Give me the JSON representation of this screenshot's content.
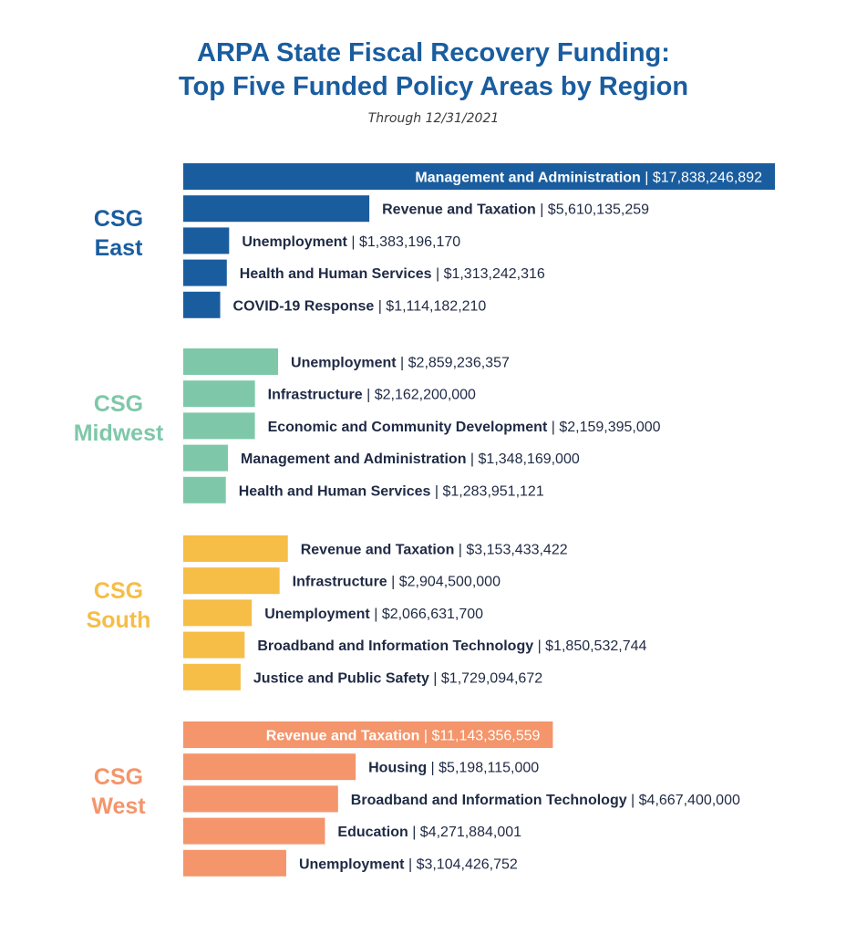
{
  "title_line1": "ARPA State Fiscal Recovery Funding:",
  "title_line2": "Top Five Funded Policy Areas by Region",
  "subtitle": "Through 12/31/2021",
  "chart_data": {
    "type": "bar",
    "orientation": "horizontal",
    "title": "ARPA State Fiscal Recovery Funding: Top Five Funded Policy Areas by Region",
    "subtitle": "Through 12/31/2021",
    "groups": [
      {
        "region": [
          "CSG",
          "East"
        ],
        "color": "#1a5d9f",
        "items": [
          {
            "category": "Management and Administration",
            "value_text": "$17,838,246,892",
            "value": 17838246892
          },
          {
            "category": "Revenue and Taxation",
            "value_text": "$5,610,135,259",
            "value": 5610135259
          },
          {
            "category": "Unemployment",
            "value_text": "$1,383,196,170",
            "value": 1383196170
          },
          {
            "category": "Health and Human Services",
            "value_text": "$1,313,242,316",
            "value": 1313242316
          },
          {
            "category": "COVID-19 Response",
            "value_text": "$1,114,182,210",
            "value": 1114182210
          }
        ]
      },
      {
        "region": [
          "CSG",
          "Midwest"
        ],
        "color": "#7ec8a9",
        "items": [
          {
            "category": "Unemployment",
            "value_text": "$2,859,236,357",
            "value": 2859236357
          },
          {
            "category": "Infrastructure",
            "value_text": "$2,162,200,000",
            "value": 2162200000
          },
          {
            "category": "Economic and Community Development",
            "value_text": "$2,159,395,000",
            "value": 2159395000
          },
          {
            "category": "Management and Administration",
            "value_text": "$1,348,169,000",
            "value": 1348169000
          },
          {
            "category": "Health and Human Services",
            "value_text": "$1,283,951,121",
            "value": 1283951121
          }
        ]
      },
      {
        "region": [
          "CSG",
          "South"
        ],
        "color": "#f6bd47",
        "items": [
          {
            "category": "Revenue and Taxation",
            "value_text": "$3,153,433,422",
            "value": 3153433422
          },
          {
            "category": "Infrastructure",
            "value_text": "$2,904,500,000",
            "value": 2904500000
          },
          {
            "category": "Unemployment",
            "value_text": "$2,066,631,700",
            "value": 2066631700
          },
          {
            "category": "Broadband and Information Technology",
            "value_text": "$1,850,532,744",
            "value": 1850532744
          },
          {
            "category": "Justice and Public Safety",
            "value_text": "$1,729,094,672",
            "value": 1729094672
          }
        ]
      },
      {
        "region": [
          "CSG",
          "West"
        ],
        "color": "#f4956b",
        "items": [
          {
            "category": "Revenue and Taxation",
            "value_text": "$11,143,356,559",
            "value": 11143356559
          },
          {
            "category": "Housing",
            "value_text": "$5,198,115,000",
            "value": 5198115000
          },
          {
            "category": "Broadband and Information Technology",
            "value_text": "$4,667,400,000",
            "value": 4667400000
          },
          {
            "category": "Education",
            "value_text": "$4,271,884,001",
            "value": 4271884001
          },
          {
            "category": "Unemployment",
            "value_text": "$3,104,426,752",
            "value": 3104426752
          }
        ]
      }
    ],
    "label_color": "#1f2a44",
    "label_inside_color": "#ffffff",
    "xlim": [
      0,
      17838246892
    ]
  }
}
